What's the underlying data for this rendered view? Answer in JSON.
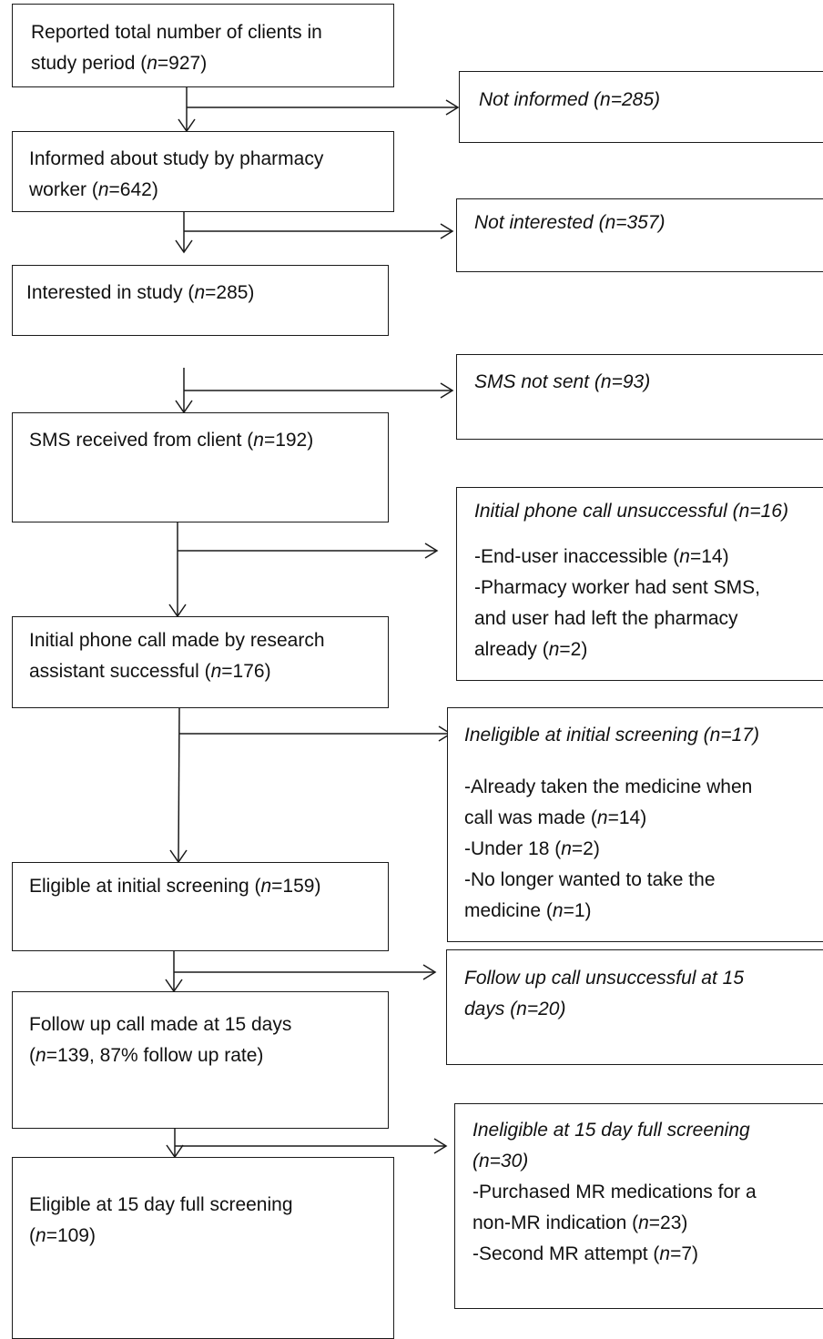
{
  "main_boxes": [
    {
      "line1": "Reported total number of clients in",
      "line2_a": "study period (",
      "n": "n",
      "line2_b": "=927)"
    },
    {
      "line1": "Informed about study by pharmacy",
      "line2_a": "worker (",
      "n": "n",
      "line2_b": "=642)"
    },
    {
      "line1_a": "Interested in study (",
      "n": "n",
      "line1_b": "=285)"
    },
    {
      "line1_a": "SMS received from client (",
      "n": "n",
      "line1_b": "=192)"
    },
    {
      "line1": "Initial phone call made by research",
      "line2_a": "assistant successful (",
      "n": "n",
      "line2_b": "=176)"
    },
    {
      "line1_a": "Eligible at initial screening (",
      "n": "n",
      "line1_b": "=159)"
    },
    {
      "line1": "Follow up call made at 15 days",
      "line2_a": "(",
      "n": "n",
      "line2_b": "=139, 87% follow up rate)"
    },
    {
      "line1": "Eligible at 15 day full screening",
      "line2_a": "(",
      "n": "n",
      "line2_b": "=109)"
    }
  ],
  "side_boxes": [
    {
      "title": "Not informed (n=285)"
    },
    {
      "title": "Not interested (n=357)"
    },
    {
      "title": "SMS not sent (n=93)"
    },
    {
      "title": "Initial phone call unsuccessful (n=16)",
      "b1_a": "-End-user inaccessible (",
      "b1_n": "n",
      "b1_b": "=14)",
      "b2_l1": "-Pharmacy worker had sent SMS,",
      "b2_l2": "and user had left the pharmacy",
      "b2_l3_a": "already (",
      "b2_n": "n",
      "b2_l3_b": "=2)"
    },
    {
      "title": "Ineligible at initial screening (n=17)",
      "b1_l1": "-Already taken the medicine when",
      "b1_l2_a": "call was made (",
      "b1_n": "n",
      "b1_l2_b": "=14)",
      "b2_a": "-Under 18 (",
      "b2_n": "n",
      "b2_b": "=2)",
      "b3_l1": "-No longer wanted to take the",
      "b3_l2_a": "medicine (",
      "b3_n": "n",
      "b3_l2_b": "=1)"
    },
    {
      "title_l1": "Follow up call unsuccessful at 15",
      "title_l2": "days (n=20)"
    },
    {
      "title_l1": "Ineligible at 15 day full screening",
      "title_l2": "(n=30)",
      "b1_l1": "-Purchased MR medications for a",
      "b1_l2_a": "non-MR indication (",
      "b1_n": "n",
      "b1_l2_b": "=23)",
      "b2_a": "-Second MR attempt (",
      "b2_n": "n",
      "b2_b": "=7)"
    }
  ]
}
